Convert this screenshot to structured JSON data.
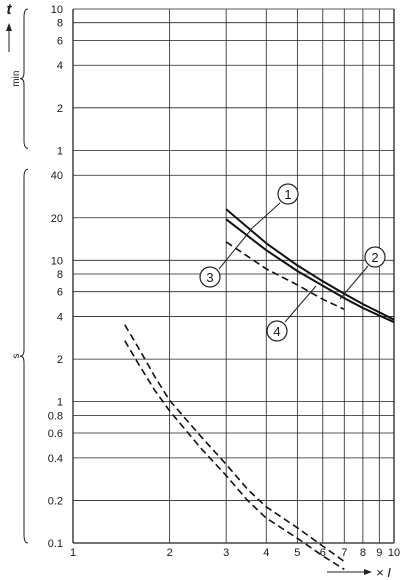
{
  "chart_data": {
    "type": "line",
    "x_scale": "log",
    "y_scale": "log",
    "xlim": [
      1,
      10
    ],
    "x_ticks": [
      1,
      2,
      3,
      4,
      5,
      6,
      7,
      8,
      9,
      10
    ],
    "x_tick_labels": [
      "1",
      "2",
      "3",
      "4",
      "5",
      "6",
      "7",
      "8",
      "9",
      "10"
    ],
    "xlabel": "× I",
    "ylabel": "t",
    "y_groups": [
      {
        "unit": "min",
        "ticks": [
          1,
          2,
          4,
          6,
          8,
          10
        ],
        "tick_labels": [
          "1",
          "2",
          "4",
          "6",
          "8",
          "10"
        ]
      },
      {
        "unit": "s",
        "ticks": [
          0.1,
          0.2,
          0.4,
          0.6,
          0.8,
          1,
          2,
          4,
          6,
          8,
          10,
          20,
          40
        ],
        "tick_labels": [
          "0.1",
          "0.2",
          "0.4",
          "0.6",
          "0.8",
          "1",
          "2",
          "4",
          "6",
          "8",
          "10",
          "20",
          "40"
        ]
      }
    ],
    "grid": true,
    "series": [
      {
        "marker": "1",
        "style": "solid",
        "points": [
          [
            3,
            23
          ],
          [
            4,
            13.2
          ],
          [
            5,
            9.2
          ],
          [
            6,
            7.1
          ],
          [
            7,
            5.8
          ],
          [
            8,
            4.9
          ],
          [
            10,
            3.8
          ]
        ]
      },
      {
        "marker": "2",
        "style": "solid",
        "points": [
          [
            3,
            19.5
          ],
          [
            4,
            11.8
          ],
          [
            5,
            8.4
          ],
          [
            6,
            6.6
          ],
          [
            7,
            5.4
          ],
          [
            8,
            4.6
          ],
          [
            10,
            3.65
          ]
        ]
      },
      {
        "marker": "3",
        "style": "dashed",
        "points": [
          [
            1.45,
            3.5
          ],
          [
            1.6,
            2.4
          ],
          [
            1.8,
            1.5
          ],
          [
            2,
            1.02
          ],
          [
            2.5,
            0.57
          ],
          [
            3,
            0.36
          ],
          [
            3.5,
            0.24
          ],
          [
            4,
            0.18
          ],
          [
            5,
            0.128
          ],
          [
            6,
            0.095
          ],
          [
            7,
            0.074
          ]
        ]
      },
      {
        "marker": "4",
        "style": "dashed",
        "points": [
          [
            1.45,
            2.7
          ],
          [
            1.6,
            1.85
          ],
          [
            1.8,
            1.2
          ],
          [
            2,
            0.86
          ],
          [
            2.5,
            0.47
          ],
          [
            3,
            0.3
          ],
          [
            3.5,
            0.2
          ],
          [
            4,
            0.15
          ],
          [
            5,
            0.108
          ],
          [
            6,
            0.081
          ],
          [
            7,
            0.065
          ]
        ]
      },
      {
        "marker": "",
        "style": "dashed",
        "points": [
          [
            3,
            13.5
          ],
          [
            4,
            8.7
          ],
          [
            5,
            6.7
          ],
          [
            6,
            5.3
          ],
          [
            7,
            4.5
          ]
        ]
      }
    ]
  }
}
